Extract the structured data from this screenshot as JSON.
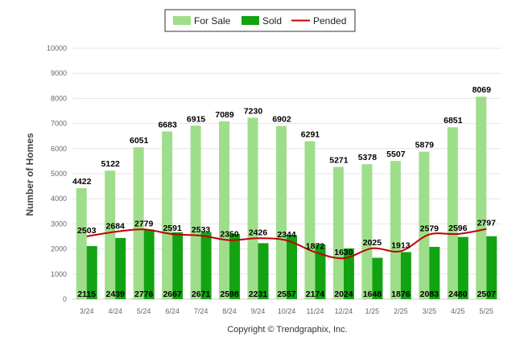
{
  "chart_data": {
    "type": "bar",
    "ylabel": "Number of Homes",
    "ylim": [
      0,
      10000
    ],
    "yticks": [
      0,
      1000,
      2000,
      3000,
      4000,
      5000,
      6000,
      7000,
      8000,
      9000,
      10000
    ],
    "grid": true,
    "legend_position": "top-center",
    "categories": [
      "3/24",
      "4/24",
      "5/24",
      "6/24",
      "7/24",
      "8/24",
      "9/24",
      "10/24",
      "11/24",
      "12/24",
      "1/25",
      "2/25",
      "3/25",
      "4/25",
      "5/25"
    ],
    "series": [
      {
        "name": "For Sale",
        "type": "bar",
        "color": "#9ede8a",
        "values": [
          4422,
          5122,
          6051,
          6683,
          6915,
          7089,
          7230,
          6902,
          6291,
          5271,
          5378,
          5507,
          5879,
          6851,
          8069
        ]
      },
      {
        "name": "Sold",
        "type": "bar",
        "color": "#12a312",
        "values": [
          2115,
          2439,
          2776,
          2667,
          2671,
          2598,
          2231,
          2557,
          2174,
          2024,
          1648,
          1876,
          2083,
          2480,
          2507
        ]
      },
      {
        "name": "Pended",
        "type": "line",
        "color": "#c00000",
        "values": [
          2503,
          2684,
          2779,
          2591,
          2533,
          2350,
          2426,
          2344,
          1872,
          1630,
          2025,
          1913,
          2579,
          2596,
          2797
        ]
      }
    ]
  },
  "footer": {
    "copyright": "Copyright © Trendgraphix, Inc."
  }
}
